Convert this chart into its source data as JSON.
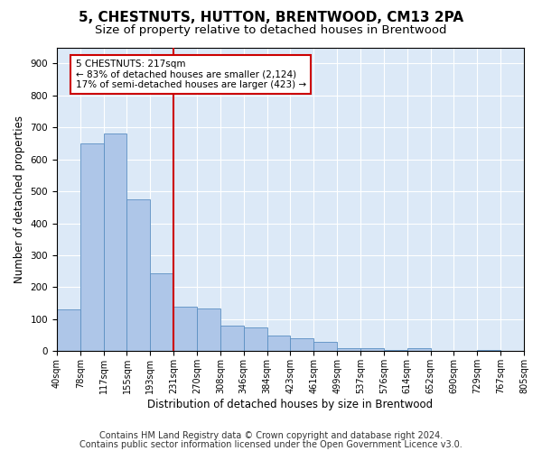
{
  "title": "5, CHESTNUTS, HUTTON, BRENTWOOD, CM13 2PA",
  "subtitle": "Size of property relative to detached houses in Brentwood",
  "xlabel": "Distribution of detached houses by size in Brentwood",
  "ylabel": "Number of detached properties",
  "bin_labels": [
    "40sqm",
    "78sqm",
    "117sqm",
    "155sqm",
    "193sqm",
    "231sqm",
    "270sqm",
    "308sqm",
    "346sqm",
    "384sqm",
    "423sqm",
    "461sqm",
    "499sqm",
    "537sqm",
    "576sqm",
    "614sqm",
    "652sqm",
    "690sqm",
    "729sqm",
    "767sqm",
    "805sqm"
  ],
  "bar_heights": [
    130,
    650,
    680,
    475,
    245,
    140,
    135,
    80,
    75,
    50,
    40,
    30,
    10,
    10,
    5,
    10,
    0,
    0,
    5,
    0
  ],
  "bar_color": "#aec6e8",
  "bar_edge_color": "#5a8fc2",
  "vline_x_index": 5,
  "vline_color": "#cc0000",
  "annotation_text": "5 CHESTNUTS: 217sqm\n← 83% of detached houses are smaller (2,124)\n17% of semi-detached houses are larger (423) →",
  "annotation_box_color": "#ffffff",
  "annotation_box_edge": "#cc0000",
  "ylim": [
    0,
    950
  ],
  "yticks": [
    0,
    100,
    200,
    300,
    400,
    500,
    600,
    700,
    800,
    900
  ],
  "footer1": "Contains HM Land Registry data © Crown copyright and database right 2024.",
  "footer2": "Contains public sector information licensed under the Open Government Licence v3.0.",
  "plot_bg_color": "#dce9f7",
  "title_fontsize": 11,
  "subtitle_fontsize": 9.5,
  "label_fontsize": 8.5,
  "tick_fontsize": 7,
  "footer_fontsize": 7,
  "annotation_fontsize": 7.5
}
